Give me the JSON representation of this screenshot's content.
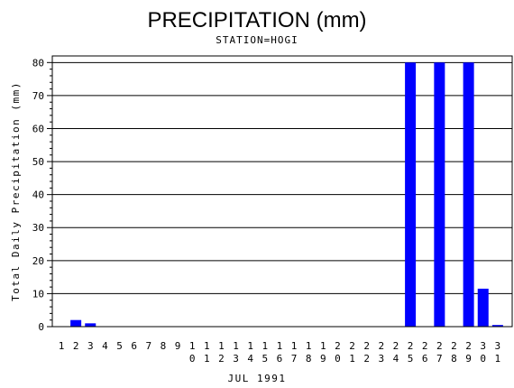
{
  "chart_data": {
    "type": "bar",
    "title": "PRECIPITATION (mm)",
    "subtitle": "STATION=HOGI",
    "xlabel": "JUL 1991",
    "ylabel": "Total Daily Precipitation (mm)",
    "ylim": [
      0,
      82
    ],
    "yticks": [
      0,
      10,
      20,
      30,
      40,
      50,
      60,
      70,
      80
    ],
    "grid": true,
    "bar_color": "#0000ff",
    "categories": [
      "1",
      "2",
      "3",
      "4",
      "5",
      "6",
      "7",
      "8",
      "9",
      "10",
      "11",
      "12",
      "13",
      "14",
      "15",
      "16",
      "17",
      "18",
      "19",
      "20",
      "21",
      "22",
      "23",
      "24",
      "25",
      "26",
      "27",
      "28",
      "29",
      "30",
      "31"
    ],
    "values": [
      0,
      2,
      1,
      0,
      0,
      0,
      0,
      0,
      0,
      0,
      0,
      0,
      0,
      0,
      0,
      0,
      0,
      0,
      0,
      0,
      0,
      0,
      0,
      0,
      80,
      0,
      80,
      0,
      80,
      11.5,
      0.5
    ]
  }
}
